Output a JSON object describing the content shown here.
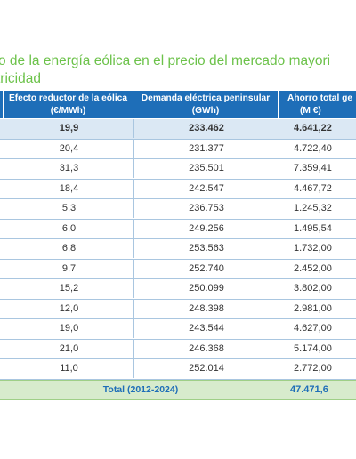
{
  "title": {
    "line1": "o de la energía eólica en el precio del mercado mayori",
    "line2": "tricidad"
  },
  "table": {
    "headers": [
      {
        "line1": "Efecto reductor de la eólica",
        "line2": "(€/MWh)"
      },
      {
        "line1": "Demanda eléctrica peninsular",
        "line2": "(GWh)"
      },
      {
        "line1": "Ahorro total ge",
        "line2": "(M €)"
      }
    ],
    "rows": [
      [
        "19,9",
        "233.462",
        "4.641,22"
      ],
      [
        "20,4",
        "231.377",
        "4.722,40"
      ],
      [
        "31,3",
        "235.501",
        "7.359,41"
      ],
      [
        "18,4",
        "242.547",
        "4.467,72"
      ],
      [
        "5,3",
        "236.753",
        "1.245,32"
      ],
      [
        "6,0",
        "249.256",
        "1.495,54"
      ],
      [
        "6,8",
        "253.563",
        "1.732,00"
      ],
      [
        "9,7",
        "252.740",
        "2.452,00"
      ],
      [
        "15,2",
        "250.099",
        "3.802,00"
      ],
      [
        "12,0",
        "248.398",
        "2.981,00"
      ],
      [
        "19,0",
        "243.544",
        "4.627,00"
      ],
      [
        "21,0",
        "246.368",
        "5.174,00"
      ],
      [
        "11,0",
        "252.014",
        "2.772,00"
      ]
    ],
    "total": {
      "label": "Total (2012-2024)",
      "value": "47.471,6"
    }
  },
  "colors": {
    "title": "#6cc24a",
    "header_bg": "#1e6eb8",
    "first_row_bg": "#dbe8f4",
    "total_bg": "#d7ebcc",
    "total_text": "#1e6eb8"
  }
}
